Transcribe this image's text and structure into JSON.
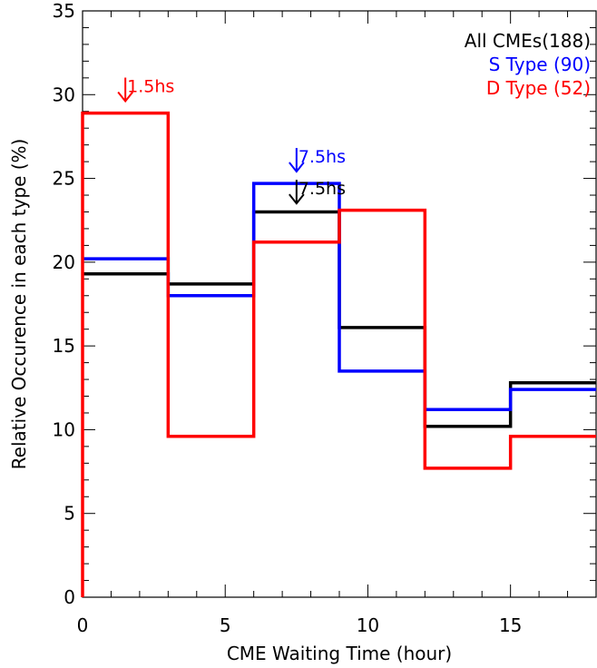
{
  "chart_data": {
    "type": "line",
    "subtype": "step-histogram",
    "title": "",
    "xlabel": "CME Waiting Time (hour)",
    "ylabel": "Relative Occurence in each type (%)",
    "xlim": [
      0,
      18
    ],
    "ylim": [
      0,
      35
    ],
    "x_ticks": [
      0,
      5,
      10,
      15
    ],
    "x_tick_labels": [
      "0",
      "5",
      "10",
      "15"
    ],
    "y_ticks": [
      0,
      5,
      10,
      15,
      20,
      25,
      30,
      35
    ],
    "y_tick_labels": [
      "0",
      "5",
      "10",
      "15",
      "20",
      "25",
      "30",
      "35"
    ],
    "grid": false,
    "legend_position": "top-right",
    "bin_edges": [
      0,
      3,
      6,
      9,
      12,
      15,
      18
    ],
    "series": [
      {
        "name": "All CMEs(188)",
        "color": "#000000",
        "values": [
          19.3,
          18.7,
          23.0,
          16.1,
          10.2,
          12.8
        ]
      },
      {
        "name": "S Type  (90)",
        "color": "#0000ff",
        "values": [
          20.2,
          18.0,
          24.7,
          13.5,
          11.2,
          12.4
        ]
      },
      {
        "name": "D Type  (52)",
        "color": "#ff0000",
        "values": [
          28.9,
          9.6,
          21.2,
          23.1,
          7.7,
          9.6
        ]
      }
    ],
    "annotations": [
      {
        "text": "1.5hs",
        "x": 1.5,
        "y": 29.5,
        "color": "#ff0000"
      },
      {
        "text": "7.5hs",
        "x": 7.5,
        "y": 25.3,
        "color": "#0000ff"
      },
      {
        "text": "7.5hs",
        "x": 7.5,
        "y": 23.4,
        "color": "#000000"
      }
    ]
  }
}
